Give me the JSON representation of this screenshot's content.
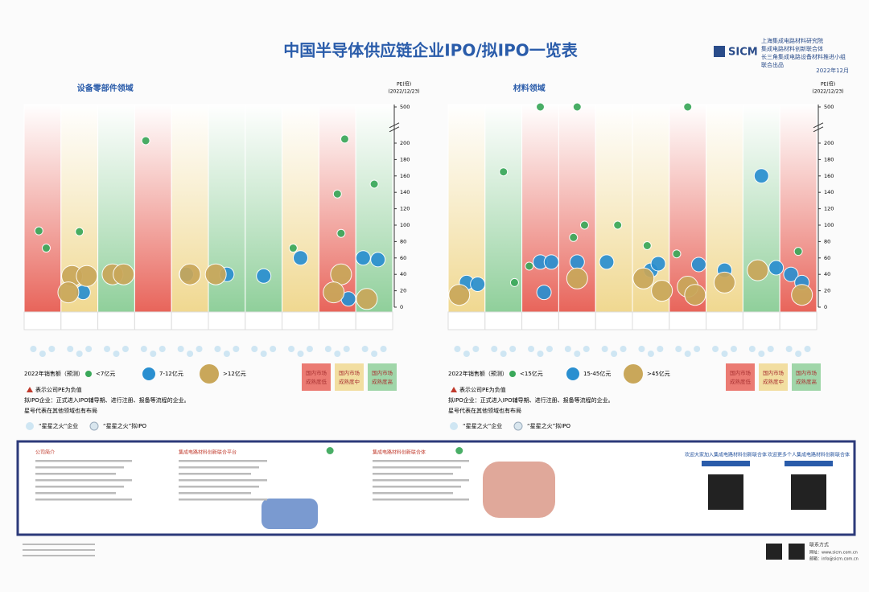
{
  "header": {
    "title": "中国半导体供应链企业IPO/拟IPO一览表",
    "logo": "SICM",
    "org_lines": [
      "上海集成电路材料研究院",
      "集成电路材料创新联合体",
      "长三角集成电路设备材料推进小组",
      "联合出品"
    ],
    "date": "2022年12月"
  },
  "chart_data": [
    {
      "type": "scatter",
      "title": "设备零部件领域",
      "y_label": [
        "PE(倍)",
        "(2022/12/23)"
      ],
      "categories": [
        null,
        null,
        null,
        null,
        null,
        null,
        null,
        null,
        null,
        null
      ],
      "zone_colors": [
        "#e8645a",
        "#f0d890",
        "#8fcf9a",
        "#e8645a",
        "#f0d890",
        "#8fcf9a",
        "#8fcf9a",
        "#f0d890",
        "#e8645a",
        "#8fcf9a"
      ],
      "xlim": [
        0,
        10
      ],
      "ylim": [
        0,
        500
      ],
      "axis_break": [
        210,
        490
      ],
      "yticks": [
        0,
        20,
        40,
        60,
        80,
        100,
        120,
        140,
        160,
        180,
        200,
        500
      ],
      "legend_title": "2022年销售额（预测）",
      "series": [
        {
          "name": "<7亿元",
          "color": "#3aa85a",
          "x": [
            0.4,
            0.6,
            1.5,
            3.3,
            8.3,
            8.7,
            8.5,
            9.5,
            7.3,
            8.6
          ],
          "values": [
            93,
            72,
            92,
            203,
            215,
            205,
            138,
            150,
            72,
            90
          ]
        },
        {
          "name": "7-12亿元",
          "color": "#2a8fd0",
          "x": [
            1.6,
            4.4,
            5.5,
            6.5,
            7.5,
            9.2,
            9.6,
            8.8
          ],
          "values": [
            18,
            40,
            40,
            38,
            60,
            60,
            58,
            10
          ]
        },
        {
          "name": ">12亿元",
          "color": "#c9a75a",
          "x": [
            1.3,
            1.7,
            1.2,
            2.4,
            2.7,
            4.5,
            5.2,
            8.6,
            8.4,
            9.3
          ],
          "values": [
            38,
            38,
            18,
            40,
            40,
            40,
            40,
            40,
            18,
            10
          ]
        }
      ]
    },
    {
      "type": "scatter",
      "title": "材料领域",
      "y_label": [
        "PE(倍)",
        "(2022/12/23)"
      ],
      "categories": [
        null,
        null,
        null,
        null,
        null,
        null,
        null,
        null,
        null,
        null
      ],
      "zone_colors": [
        "#f0d890",
        "#8fcf9a",
        "#e8645a",
        "#e8645a",
        "#f0d890",
        "#f0d890",
        "#e8645a",
        "#f0d890",
        "#8fcf9a",
        "#e8645a"
      ],
      "xlim": [
        0,
        10
      ],
      "ylim": [
        0,
        500
      ],
      "axis_break": [
        210,
        490
      ],
      "yticks": [
        0,
        20,
        40,
        60,
        80,
        100,
        120,
        140,
        160,
        180,
        200,
        500
      ],
      "legend_title": "2022年销售额（预测）",
      "series": [
        {
          "name": "<15亿元",
          "color": "#3aa85a",
          "x": [
            0.3,
            1.5,
            2.5,
            3.5,
            3.7,
            3.4,
            4.6,
            5.4,
            6.5,
            6.2,
            9.5,
            1.8,
            2.2
          ],
          "values": [
            215,
            165,
            500,
            500,
            100,
            85,
            100,
            75,
            500,
            65,
            68,
            30,
            50
          ]
        },
        {
          "name": "15-45亿元",
          "color": "#2a8fd0",
          "x": [
            0.5,
            0.8,
            2.5,
            2.8,
            3.5,
            2.6,
            4.3,
            5.5,
            5.7,
            6.8,
            7.5,
            8.5,
            9.3,
            9.6,
            8.9
          ],
          "values": [
            30,
            28,
            55,
            55,
            55,
            18,
            55,
            45,
            53,
            52,
            45,
            160,
            40,
            30,
            48
          ]
        },
        {
          "name": ">45亿元",
          "color": "#c9a75a",
          "x": [
            0.3,
            3.5,
            5.3,
            5.8,
            6.5,
            6.7,
            7.5,
            8.4,
            9.6
          ],
          "values": [
            15,
            35,
            35,
            20,
            25,
            15,
            30,
            45,
            15
          ]
        }
      ]
    }
  ],
  "maturity_legend": [
    [
      "国内市场",
      "成熟度低"
    ],
    [
      "国内市场",
      "成熟度中"
    ],
    [
      "国内市场",
      "成熟度高"
    ]
  ],
  "notes": {
    "negative_pe": "表示公司PE为负值",
    "pre_ipo": "拟IPO企业：正式进入IPO辅导期、进行注册、报备等流程的企业。",
    "star": "星号代表在其他领域也有布局",
    "spark": "“星星之火”企业",
    "spark_pre": "“星星之火”拟IPO"
  },
  "bottom_panel": {
    "sections": [
      "公司简介",
      "集成电路材料创新联合平台",
      "集成电路材料创新联合体"
    ],
    "join": [
      "欢迎大家加入集成电路材料创新联合体",
      "欢迎更多个人集成电路材料创新联合体"
    ],
    "contact": {
      "title": "联系方式",
      "web": "网址：www.sicm.com.cn",
      "mail": "邮箱：info@sicm.com.cn"
    }
  }
}
